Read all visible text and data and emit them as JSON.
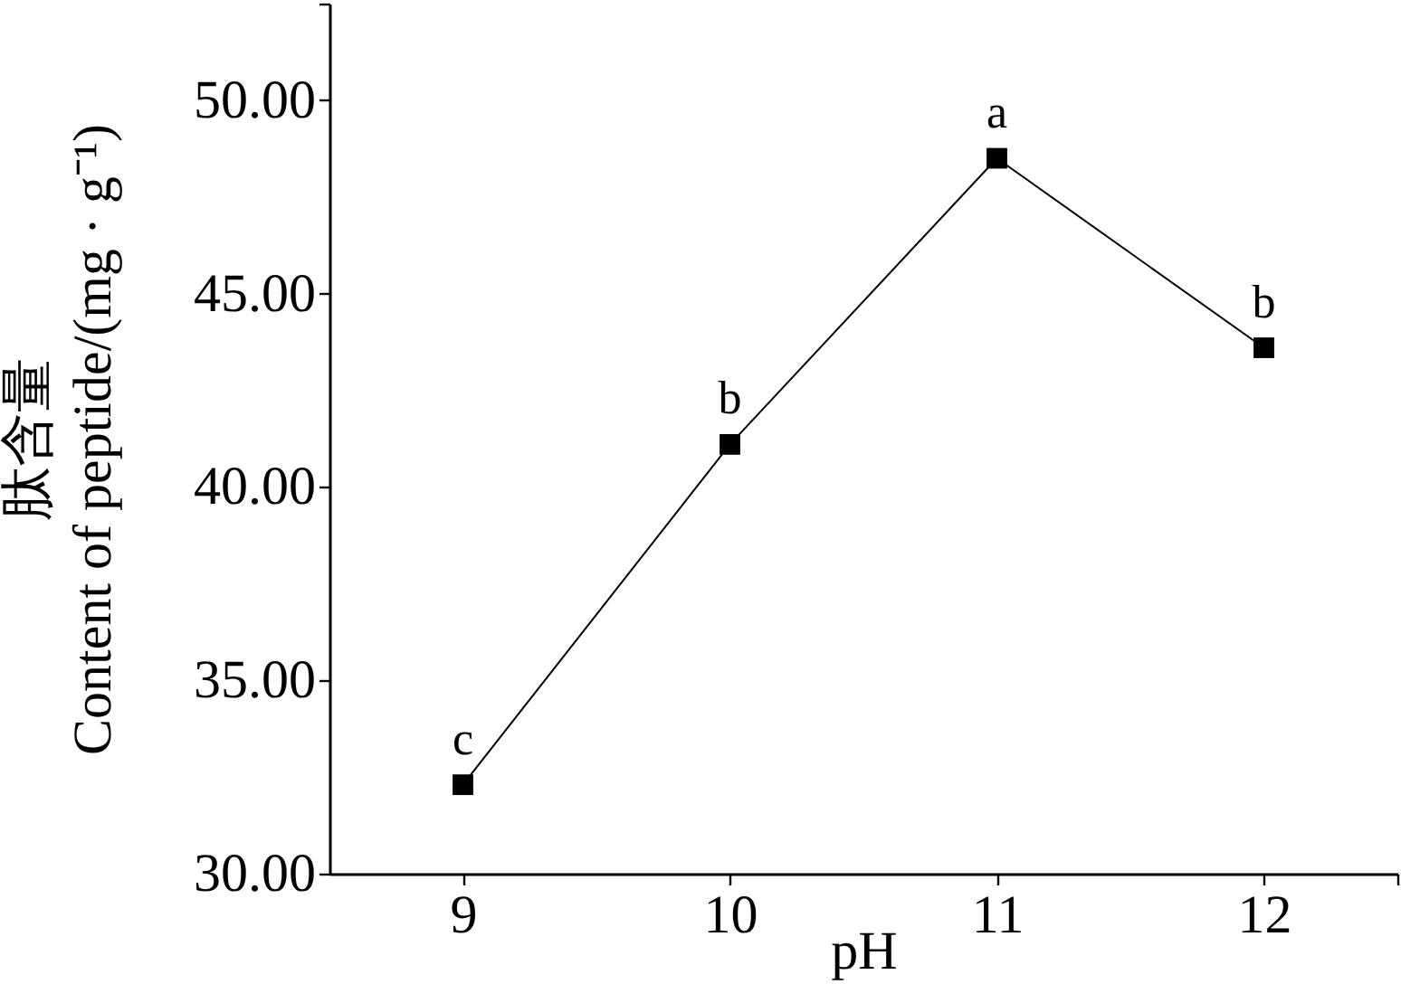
{
  "chart_data": {
    "type": "line",
    "xlabel": "pH",
    "ylabel": "肽含量\nContent of peptide/(mg · g⁻¹)",
    "x": [
      9,
      10,
      11,
      12
    ],
    "series": [
      {
        "color": "#000000",
        "values": [
          32.3,
          41.1,
          48.5,
          43.6
        ]
      }
    ],
    "xlim": [
      8.5,
      12.5
    ],
    "ylim": [
      30,
      52.5
    ],
    "xticks": [
      9,
      10,
      11,
      12,
      {
        "value": 12.5,
        "label": null
      }
    ],
    "yticks": [
      {
        "value": 30,
        "label": "30.00"
      },
      {
        "value": 35,
        "label": "35.00"
      },
      {
        "value": 40,
        "label": "40.00"
      },
      {
        "value": 45,
        "label": "45.00"
      },
      {
        "value": 50,
        "label": "50.00"
      },
      {
        "value": 52.5,
        "label": null
      }
    ],
    "marker": "square",
    "line_style": "solid",
    "annotations": [
      {
        "text": "c",
        "x": 9,
        "y": 32.3
      },
      {
        "text": "b",
        "x": 10,
        "y": 41.1
      },
      {
        "text": "a",
        "x": 11,
        "y": 48.5
      },
      {
        "text": "b",
        "x": 12,
        "y": 43.6
      }
    ]
  }
}
